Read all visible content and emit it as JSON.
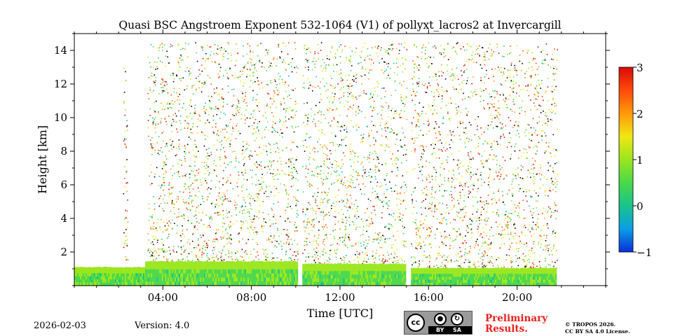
{
  "chart_data": {
    "type": "heatmap",
    "title": "Quasi BSC Angstroem Exponent 532-1064 (V1) of pollyxt_lacros2 at Invercargill",
    "xlabel": "Time [UTC]",
    "ylabel": "Height [km]",
    "xlim_hours": [
      0,
      24
    ],
    "ylim_km": [
      0,
      15
    ],
    "x_ticks": [
      {
        "hour": 4,
        "label": "04:00"
      },
      {
        "hour": 8,
        "label": "08:00"
      },
      {
        "hour": 12,
        "label": "12:00"
      },
      {
        "hour": 16,
        "label": "16:00"
      },
      {
        "hour": 20,
        "label": "20:00"
      }
    ],
    "y_ticks": [
      {
        "km": 2,
        "label": "2"
      },
      {
        "km": 4,
        "label": "4"
      },
      {
        "km": 6,
        "label": "6"
      },
      {
        "km": 8,
        "label": "8"
      },
      {
        "km": 10,
        "label": "10"
      },
      {
        "km": 12,
        "label": "12"
      },
      {
        "km": 14,
        "label": "14"
      }
    ],
    "colorbar": {
      "range": [
        -1,
        3
      ],
      "ticks": [
        {
          "value": -1,
          "label": "−1"
        },
        {
          "value": 0,
          "label": "0"
        },
        {
          "value": 1,
          "label": "1"
        },
        {
          "value": 2,
          "label": "2"
        },
        {
          "value": 3,
          "label": "3"
        }
      ],
      "colors": [
        "#0a2fd8",
        "#0a9ee6",
        "#18c48c",
        "#4ad84a",
        "#9ae61e",
        "#f0e614",
        "#ff9a0a",
        "#ff4a0a",
        "#d80a0a"
      ]
    },
    "boundary_layer": {
      "segments": [
        {
          "start_hour": 0.0,
          "end_hour": 3.2,
          "top_km": 1.1
        },
        {
          "start_hour": 3.2,
          "end_hour": 10.1,
          "top_km": 1.45
        },
        {
          "start_hour": 10.3,
          "end_hour": 15.0,
          "top_km": 1.3
        },
        {
          "start_hour": 15.2,
          "end_hour": 21.8,
          "top_km": 1.05
        }
      ],
      "typical_value": 0.8
    },
    "data_gaps_hours": [
      [
        10.1,
        10.3
      ],
      [
        15.0,
        15.2
      ]
    ],
    "scatter_regions": [
      {
        "start_hour": 2.2,
        "end_hour": 2.4,
        "bottom_km": 1.1,
        "top_km": 13.0,
        "mean_value": 1.8
      },
      {
        "start_hour": 3.3,
        "end_hour": 10.1,
        "bottom_km": 1.45,
        "top_km": 14.5,
        "mean_value": 1.4
      },
      {
        "start_hour": 10.3,
        "end_hour": 15.0,
        "bottom_km": 1.3,
        "top_km": 14.5,
        "mean_value": 1.3
      },
      {
        "start_hour": 15.2,
        "end_hour": 21.8,
        "bottom_km": 1.05,
        "top_km": 14.5,
        "mean_value": 1.6
      }
    ]
  },
  "footer": {
    "date": "2026-02-03",
    "version": "Version: 4.0",
    "cc_by": "BY",
    "cc_sa": "SA",
    "preliminary_line1": "Preliminary",
    "preliminary_line2": "Results.",
    "copyright_line1": "© TROPOS 2026.",
    "copyright_line2": "CC BY SA 4.0 License."
  }
}
